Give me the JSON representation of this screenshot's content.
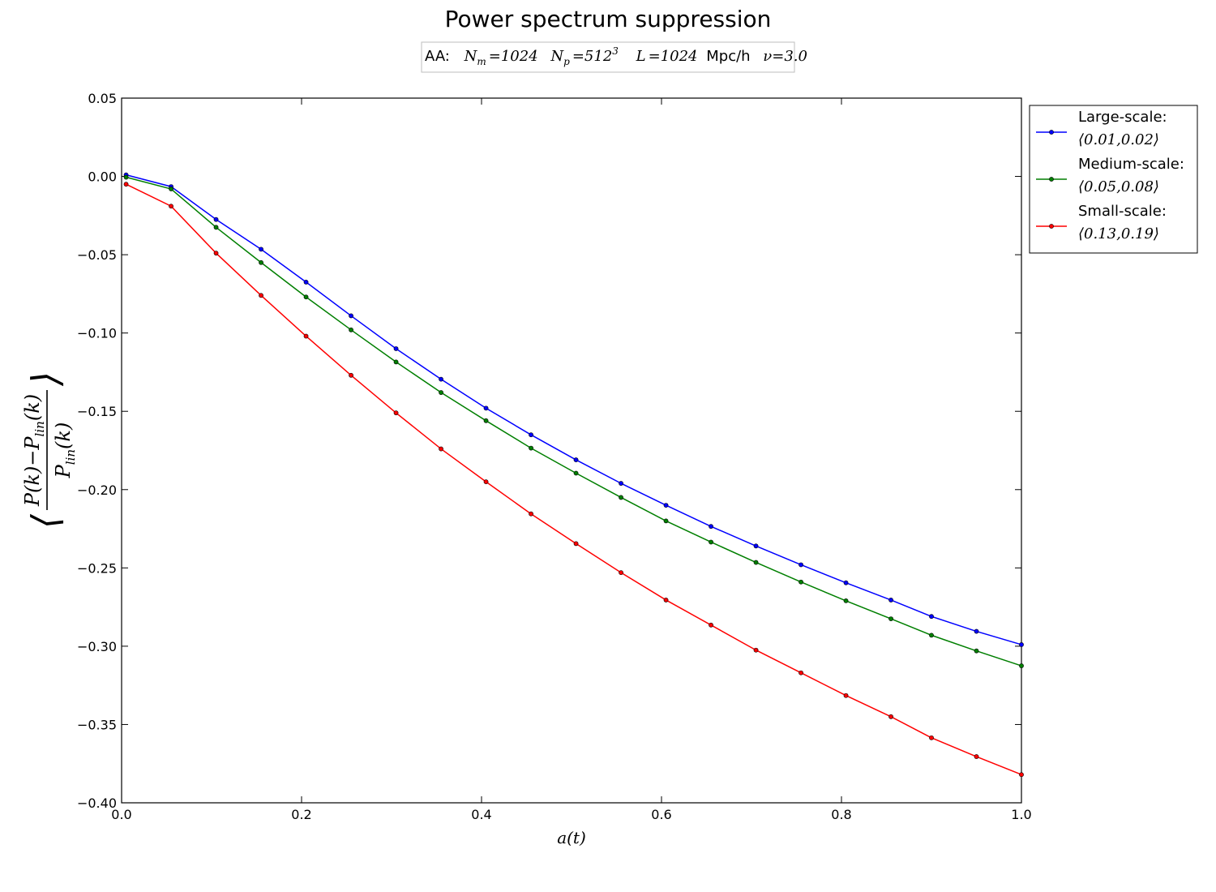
{
  "chart_data": {
    "type": "line",
    "title": "Power spectrum suppression",
    "subtitle": {
      "prefix": "AA:",
      "nm_label": "N",
      "nm_sub": "m",
      "nm_value": "=1024",
      "np_label": "N",
      "np_sub": "p",
      "np_value": "=512",
      "np_exp": "3",
      "l_label": "L",
      "l_value": "=1024",
      "l_unit": "Mpc/h",
      "nu_label": "ν",
      "nu_value": "=3.0"
    },
    "xlabel": "a(t)",
    "ylabel": {
      "num_a": "P(k)",
      "num_minus": "−",
      "num_b": "P",
      "num_b_sub": "lin",
      "num_b_arg": "(k)",
      "den": "P",
      "den_sub": "lin",
      "den_arg": "(k)"
    },
    "xlim": [
      0.0,
      1.0
    ],
    "ylim": [
      -0.4,
      0.05
    ],
    "xticks": [
      0.0,
      0.2,
      0.4,
      0.6,
      0.8,
      1.0
    ],
    "xtick_labels": [
      "0.0",
      "0.2",
      "0.4",
      "0.6",
      "0.8",
      "1.0"
    ],
    "yticks": [
      0.05,
      0.0,
      -0.05,
      -0.1,
      -0.15,
      -0.2,
      -0.25,
      -0.3,
      -0.35,
      -0.4
    ],
    "ytick_labels": [
      "0.05",
      "0.00",
      "−0.05",
      "−0.10",
      "−0.15",
      "−0.20",
      "−0.25",
      "−0.30",
      "−0.35",
      "−0.40"
    ],
    "grid": false,
    "legend_position": "outside-top-right",
    "x": [
      0.005,
      0.055,
      0.105,
      0.155,
      0.205,
      0.255,
      0.305,
      0.355,
      0.405,
      0.455,
      0.505,
      0.555,
      0.605,
      0.655,
      0.705,
      0.755,
      0.805,
      0.855,
      0.9,
      0.95,
      1.0
    ],
    "series": [
      {
        "name": "Large-scale:",
        "range": "⟨0.01,0.02⟩",
        "color": "#0000ff",
        "values": [
          0.001,
          -0.0065,
          -0.0275,
          -0.0465,
          -0.0675,
          -0.089,
          -0.11,
          -0.1295,
          -0.148,
          -0.165,
          -0.181,
          -0.196,
          -0.21,
          -0.2235,
          -0.236,
          -0.248,
          -0.2595,
          -0.2705,
          -0.281,
          -0.2905,
          -0.299
        ]
      },
      {
        "name": "Medium-scale:",
        "range": "⟨0.05,0.08⟩",
        "color": "#007f00",
        "values": [
          -0.0005,
          -0.008,
          -0.0325,
          -0.055,
          -0.077,
          -0.098,
          -0.1185,
          -0.138,
          -0.156,
          -0.1735,
          -0.1895,
          -0.205,
          -0.22,
          -0.2335,
          -0.2465,
          -0.259,
          -0.271,
          -0.2825,
          -0.293,
          -0.303,
          -0.3125
        ]
      },
      {
        "name": "Small-scale:",
        "range": "⟨0.13,0.19⟩",
        "color": "#ff0000",
        "values": [
          -0.005,
          -0.019,
          -0.049,
          -0.076,
          -0.102,
          -0.127,
          -0.151,
          -0.174,
          -0.195,
          -0.2155,
          -0.2345,
          -0.253,
          -0.2705,
          -0.2865,
          -0.3025,
          -0.317,
          -0.3315,
          -0.345,
          -0.3585,
          -0.3705,
          -0.382
        ]
      }
    ]
  }
}
